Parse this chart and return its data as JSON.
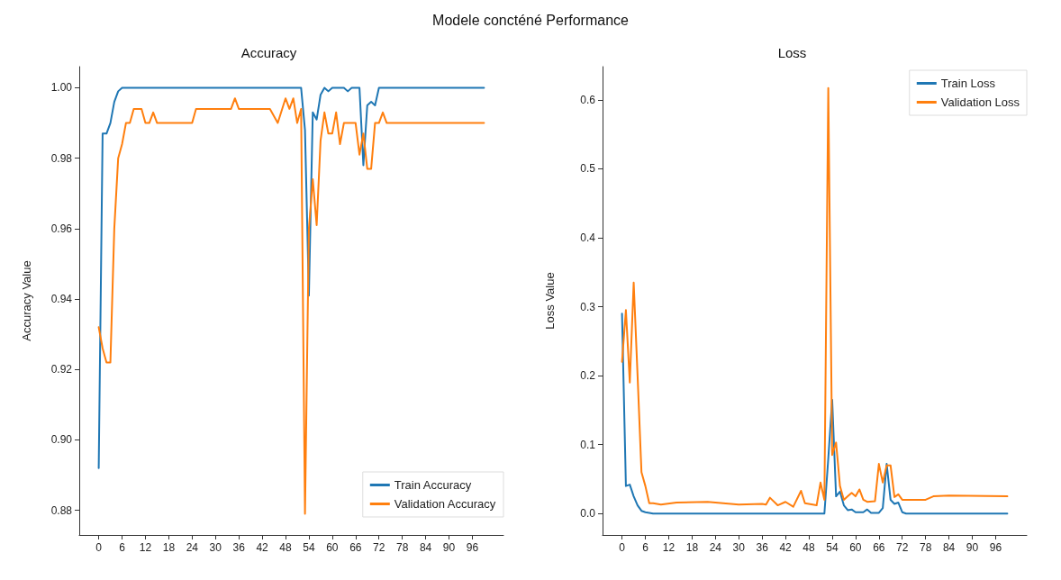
{
  "chart_data": [
    {
      "type": "line",
      "title": "Accuracy",
      "annotations": [
        "Modele concténé Performance"
      ],
      "ylabel": "Accuracy Value",
      "xlim": [
        -5,
        104
      ],
      "ylim": [
        0.873,
        1.006
      ],
      "xticks": [
        0,
        6,
        12,
        18,
        24,
        30,
        36,
        42,
        48,
        54,
        60,
        66,
        72,
        78,
        84,
        90,
        96
      ],
      "yticks": [
        0.88,
        {
          "value": 0.9,
          "label": "0.90"
        },
        0.92,
        0.94,
        0.96,
        0.98,
        {
          "value": 1.0,
          "label": "1.00"
        }
      ],
      "grid": false,
      "legend": "bottom right",
      "marker": "none",
      "line_style": "solid",
      "series": [
        {
          "name": "Train Accuracy",
          "color": "#1f77b4",
          "x": [
            0,
            1,
            2,
            3,
            4,
            5,
            6,
            52,
            53,
            54,
            55,
            56,
            57,
            58,
            59,
            60,
            61,
            63,
            64,
            65,
            67,
            68,
            69,
            70,
            71,
            72,
            99
          ],
          "values": [
            0.892,
            0.987,
            0.987,
            0.99,
            0.996,
            0.999,
            1.0,
            1.0,
            0.988,
            0.941,
            0.993,
            0.991,
            0.998,
            1.0,
            0.999,
            1.0,
            1.0,
            1.0,
            0.999,
            1.0,
            1.0,
            0.978,
            0.995,
            0.996,
            0.995,
            1.0,
            1.0
          ]
        },
        {
          "name": "Validation Accuracy",
          "color": "#ff7f0e",
          "x": [
            0,
            1,
            2,
            3,
            4,
            5,
            6,
            7,
            8,
            9,
            11,
            12,
            13,
            14,
            15,
            24,
            25,
            34,
            35,
            36,
            44,
            46,
            48,
            49,
            50,
            51,
            52,
            53,
            54,
            55,
            56,
            57,
            58,
            59,
            60,
            61,
            62,
            63,
            66,
            67,
            68,
            69,
            70,
            71,
            72,
            73,
            74,
            99
          ],
          "values": [
            0.932,
            0.926,
            0.922,
            0.922,
            0.96,
            0.98,
            0.984,
            0.99,
            0.99,
            0.994,
            0.994,
            0.99,
            0.99,
            0.993,
            0.99,
            0.99,
            0.994,
            0.994,
            0.997,
            0.994,
            0.994,
            0.99,
            0.997,
            0.994,
            0.997,
            0.99,
            0.994,
            0.879,
            0.96,
            0.974,
            0.961,
            0.985,
            0.993,
            0.987,
            0.987,
            0.993,
            0.984,
            0.99,
            0.99,
            0.981,
            0.987,
            0.977,
            0.977,
            0.99,
            0.99,
            0.993,
            0.99,
            0.99
          ]
        }
      ]
    },
    {
      "type": "line",
      "title": "Loss",
      "ylabel": "Loss Value",
      "xlim": [
        -5,
        104
      ],
      "ylim": [
        -0.031,
        0.648
      ],
      "xticks": [
        0,
        6,
        12,
        18,
        24,
        30,
        36,
        42,
        48,
        54,
        60,
        66,
        72,
        78,
        84,
        90,
        96
      ],
      "yticks": [
        {
          "value": 0,
          "label": "0.0"
        },
        0.1,
        0.2,
        0.3,
        0.4,
        0.5,
        0.6
      ],
      "grid": false,
      "legend": "top right",
      "marker": "none",
      "line_style": "solid",
      "series": [
        {
          "name": "Train Loss",
          "color": "#1f77b4",
          "x": [
            0,
            1,
            2,
            3,
            4,
            5,
            6,
            7,
            8,
            52,
            53,
            54,
            55,
            56,
            57,
            58,
            59,
            60,
            62,
            63,
            64,
            66,
            67,
            68,
            69,
            70,
            71,
            72,
            73,
            99
          ],
          "values": [
            0.29,
            0.04,
            0.042,
            0.025,
            0.012,
            0.004,
            0.002,
            0.001,
            0.0,
            0.0,
            0.08,
            0.165,
            0.025,
            0.032,
            0.012,
            0.005,
            0.006,
            0.002,
            0.002,
            0.006,
            0.001,
            0.001,
            0.008,
            0.072,
            0.02,
            0.014,
            0.016,
            0.002,
            0.0,
            0.0
          ]
        },
        {
          "name": "Validation Loss",
          "color": "#ff7f0e",
          "x": [
            0,
            1,
            2,
            3,
            4,
            5,
            6,
            7,
            8,
            10,
            14,
            22,
            26,
            30,
            36,
            37,
            38,
            40,
            42,
            44,
            46,
            47,
            50,
            51,
            52,
            53,
            54,
            55,
            56,
            57,
            58,
            59,
            60,
            61,
            62,
            63,
            65,
            66,
            67,
            68,
            69,
            70,
            71,
            72,
            78,
            80,
            84,
            99
          ],
          "values": [
            0.22,
            0.295,
            0.19,
            0.335,
            0.2,
            0.06,
            0.04,
            0.015,
            0.015,
            0.013,
            0.016,
            0.017,
            0.015,
            0.013,
            0.014,
            0.013,
            0.023,
            0.012,
            0.017,
            0.01,
            0.033,
            0.015,
            0.012,
            0.045,
            0.02,
            0.617,
            0.085,
            0.103,
            0.04,
            0.02,
            0.025,
            0.03,
            0.025,
            0.035,
            0.02,
            0.017,
            0.018,
            0.072,
            0.045,
            0.07,
            0.07,
            0.024,
            0.028,
            0.02,
            0.02,
            0.025,
            0.026,
            0.025
          ]
        }
      ]
    }
  ]
}
